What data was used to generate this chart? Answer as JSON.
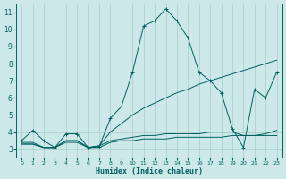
{
  "xlabel": "Humidex (Indice chaleur)",
  "background_color": "#cce8e8",
  "grid_color": "#aacccc",
  "line_color": "#006060",
  "xlim": [
    -0.5,
    23.5
  ],
  "ylim": [
    2.5,
    11.5
  ],
  "yticks": [
    3,
    4,
    5,
    6,
    7,
    8,
    9,
    10,
    11
  ],
  "xticks": [
    0,
    1,
    2,
    3,
    4,
    5,
    6,
    7,
    8,
    9,
    10,
    11,
    12,
    13,
    14,
    15,
    16,
    17,
    18,
    19,
    20,
    21,
    22,
    23
  ],
  "main_y": [
    3.5,
    4.1,
    3.5,
    3.1,
    3.9,
    3.9,
    3.1,
    3.15,
    4.8,
    5.5,
    7.5,
    10.2,
    10.5,
    11.2,
    10.5,
    9.5,
    7.5,
    7.0,
    6.3,
    4.2,
    3.1,
    6.5,
    6.0,
    7.5
  ],
  "trend_y": [
    3.3,
    3.3,
    3.1,
    3.1,
    3.5,
    3.5,
    3.1,
    3.2,
    4.0,
    4.5,
    5.0,
    5.4,
    5.7,
    6.0,
    6.3,
    6.5,
    6.8,
    7.0,
    7.2,
    7.4,
    7.6,
    7.8,
    8.0,
    8.2
  ],
  "flat1_y": [
    3.4,
    3.4,
    3.1,
    3.1,
    3.5,
    3.5,
    3.1,
    3.2,
    3.5,
    3.6,
    3.7,
    3.8,
    3.8,
    3.9,
    3.9,
    3.9,
    3.9,
    4.0,
    4.0,
    4.0,
    3.8,
    3.8,
    3.9,
    4.1
  ],
  "flat2_y": [
    3.3,
    3.3,
    3.1,
    3.1,
    3.4,
    3.4,
    3.1,
    3.1,
    3.4,
    3.5,
    3.5,
    3.6,
    3.6,
    3.6,
    3.7,
    3.7,
    3.7,
    3.7,
    3.7,
    3.8,
    3.8,
    3.8,
    3.8,
    3.8
  ]
}
